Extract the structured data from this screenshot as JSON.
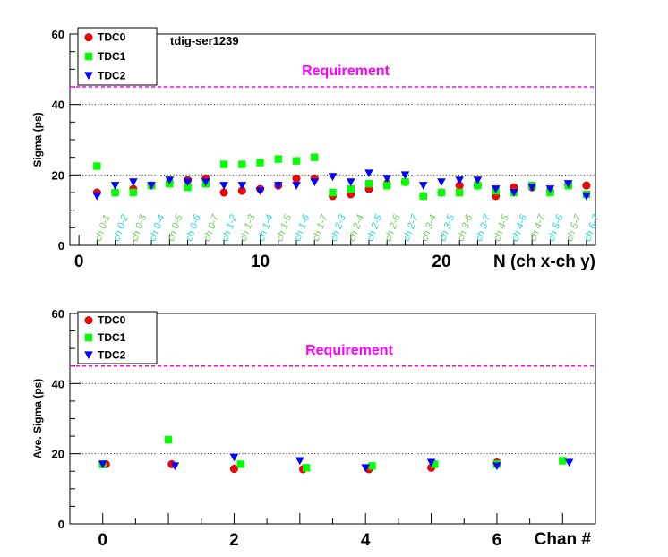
{
  "chart_data": [
    {
      "type": "scatter",
      "title": "",
      "annotation": "tdig-ser1239",
      "requirement": {
        "label": "Requirement",
        "value": 45,
        "color": "#ff00ff"
      },
      "xlabel": "N (ch x-ch y)",
      "ylabel": "Sigma (ps)",
      "xlim": [
        -0.5,
        28.5
      ],
      "ylim": [
        0,
        60
      ],
      "xticks_labeled": [
        0,
        10,
        20
      ],
      "yticks_labeled": [
        0,
        20,
        40,
        60
      ],
      "grid": "horizontal-dotted",
      "legend_position": "top-left",
      "channel_labels": [
        "ch 0-1",
        "ch 0-2",
        "ch 0-3",
        "ch 0-4",
        "ch 0-5",
        "ch 0-6",
        "ch 0-7",
        "ch 1-2",
        "ch 1-3",
        "ch 1-4",
        "ch 1-5",
        "ch 1-6",
        "ch 1-7",
        "ch 2-3",
        "ch 2-4",
        "ch 2-5",
        "ch 2-6",
        "ch 2-7",
        "ch 3-4",
        "ch 3-5",
        "ch 3-6",
        "ch 3-7",
        "ch 4-5",
        "ch 4-6",
        "ch 4-7",
        "ch 5-6",
        "ch 5-7",
        "ch 6-7"
      ],
      "x": [
        1,
        2,
        3,
        4,
        5,
        6,
        7,
        8,
        9,
        10,
        11,
        12,
        13,
        14,
        15,
        16,
        17,
        18,
        19,
        20,
        21,
        22,
        23,
        24,
        25,
        26,
        27,
        28
      ],
      "series": [
        {
          "name": "TDC0",
          "color": "#ff0000",
          "marker": "circle",
          "values": [
            15,
            15,
            16,
            17,
            18,
            18.5,
            19,
            15,
            15.5,
            16,
            17,
            19,
            19,
            14,
            14.5,
            16,
            17.5,
            18,
            14,
            15,
            17,
            17,
            14,
            16.5,
            16.5,
            15.5,
            17,
            17
          ]
        },
        {
          "name": "TDC1",
          "color": "#00ff00",
          "marker": "square",
          "values": [
            22.5,
            15,
            15,
            17,
            17.5,
            16.5,
            17.5,
            23,
            23,
            23.5,
            24.5,
            24,
            25,
            15,
            16,
            17.5,
            17,
            18,
            14,
            15,
            15,
            17,
            15.5,
            15,
            17,
            15,
            17,
            14.5
          ]
        },
        {
          "name": "TDC2",
          "color": "#0000ff",
          "marker": "triangle-down",
          "values": [
            14,
            17,
            18,
            17,
            18.5,
            18,
            18,
            17,
            17,
            15.5,
            17,
            17,
            18,
            19.5,
            18,
            20.5,
            19,
            20,
            17,
            18,
            18.5,
            18.5,
            16,
            15,
            16.5,
            16,
            17.5,
            14
          ]
        }
      ]
    },
    {
      "type": "scatter",
      "title": "",
      "requirement": {
        "label": "Requirement",
        "value": 45,
        "color": "#ff00ff"
      },
      "xlabel": "Chan #",
      "ylabel": "Ave. Sigma (ps)",
      "xlim": [
        -0.5,
        7.5
      ],
      "ylim": [
        0,
        60
      ],
      "xticks_labeled": [
        0,
        2,
        4,
        6
      ],
      "yticks_labeled": [
        0,
        20,
        40,
        60
      ],
      "grid": "horizontal-dotted",
      "legend_position": "top-left",
      "series": [
        {
          "name": "TDC0",
          "color": "#ff0000",
          "marker": "circle",
          "x": [
            0.05,
            1.05,
            2.0,
            3.05,
            4.05,
            5.0,
            6.0
          ],
          "values": [
            17,
            17,
            15.7,
            15.6,
            15.6,
            16,
            17.5
          ]
        },
        {
          "name": "TDC1",
          "color": "#00ff00",
          "marker": "square",
          "x": [
            0.0,
            1.0,
            2.1,
            3.1,
            4.1,
            5.05,
            6.0,
            7.0
          ],
          "values": [
            17,
            24,
            17,
            16,
            16.5,
            17,
            17,
            18
          ]
        },
        {
          "name": "TDC2",
          "color": "#0000ff",
          "marker": "triangle-down",
          "x": [
            0.0,
            1.1,
            2.0,
            3.0,
            4.0,
            5.0,
            6.0,
            7.1
          ],
          "values": [
            17,
            16.5,
            19,
            18,
            16,
            17.5,
            16.5,
            17.5
          ]
        }
      ]
    }
  ]
}
